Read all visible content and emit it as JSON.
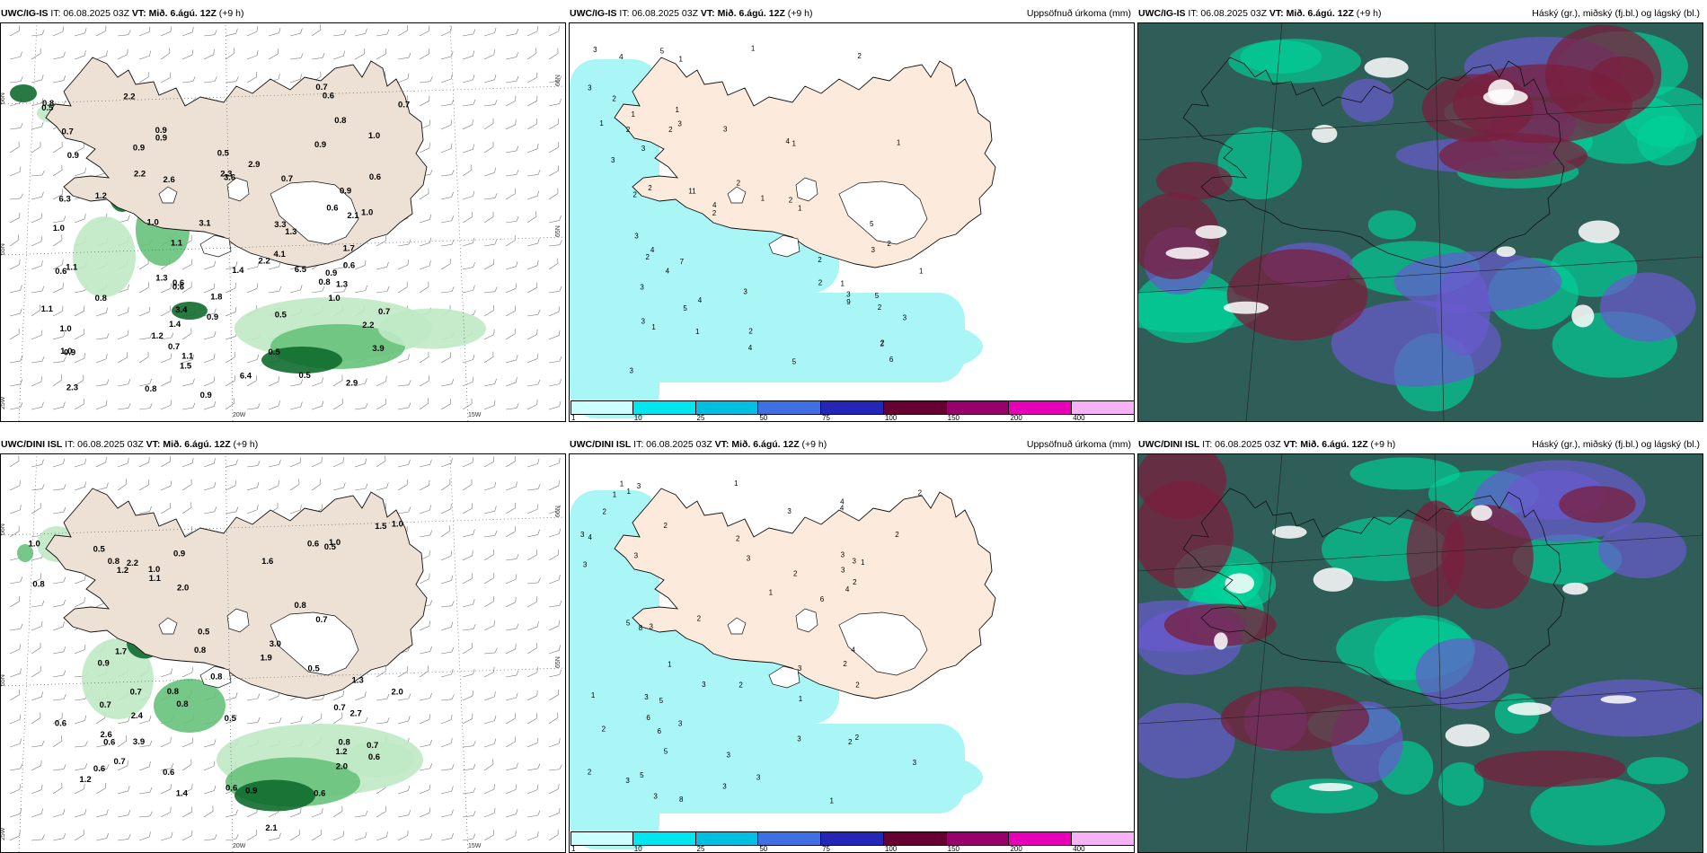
{
  "rows": [
    {
      "header": {
        "source": "UWC/IG-IS",
        "it": "IT: 06.08.2025 03Z",
        "vt_label": "VT: Mið. 6.ágú. 12Z",
        "lead": "(+9 h)"
      },
      "pressure_values": [
        "0.6",
        "0.9",
        "0.9",
        "1.2",
        "1.3",
        "2.9",
        "3.6",
        "3.1",
        "2.9",
        "0.8",
        "0.6",
        "1.0",
        "1.4",
        "0.5",
        "0.7",
        "0.8",
        "1.1",
        "1.0",
        "0.5",
        "1.4",
        "0.9",
        "0.7",
        "2.2",
        "1.3",
        "0.9",
        "0.9",
        "0.5",
        "1.1",
        "1.0",
        "0.8",
        "0.5",
        "1.1",
        "1.2",
        "0.9",
        "1.0",
        "0.6",
        "0.5",
        "0.8",
        "1.8",
        "1.3",
        "1.1",
        "0.9",
        "0.9",
        "0.8",
        "1.0",
        "2.2",
        "3.3",
        "6.5",
        "6.4",
        "6.3",
        "4.1",
        "2.2",
        "3.4",
        "2.2",
        "2.3",
        "3.9",
        "2.1",
        "2.6",
        "0.7",
        "0.7",
        "0.6",
        "0.7",
        "0.9",
        "2.3",
        "0.7",
        "1.0",
        "0.6",
        "1.0",
        "0.6",
        "1.5",
        "0.6",
        "0.9",
        "1.7"
      ],
      "precip_values": [
        "2",
        "4",
        "4",
        "3",
        "2",
        "1",
        "1",
        "2",
        "3",
        "5",
        "4",
        "3",
        "1",
        "2",
        "3",
        "1",
        "2",
        "1",
        "2",
        "2",
        "2",
        "1",
        "2",
        "1",
        "1",
        "1",
        "2",
        "2",
        "1",
        "1",
        "2",
        "2",
        "3",
        "1",
        "2",
        "3",
        "4",
        "3",
        "3",
        "3",
        "3",
        "2",
        "4",
        "5",
        "6",
        "5",
        "3",
        "4",
        "9",
        "2",
        "7",
        "11",
        "3",
        "1",
        "3",
        "4",
        "5",
        "2",
        "3",
        "5"
      ],
      "precip_title": "Uppsöfnuð úrkoma (mm)",
      "cloud_title": "Háský (gr.), miðský (fj.bl.) og lágský (bl.)",
      "axis_labels": [
        "66N",
        "65N",
        "25W",
        "20W",
        "15W",
        "66N",
        "65N"
      ]
    },
    {
      "header": {
        "source": "UWC/DINI ISL",
        "it": "IT: 06.08.2025 03Z",
        "vt_label": "VT: Mið. 6.ágú. 12Z",
        "lead": "(+9 h)"
      },
      "pressure_values": [
        "0.6",
        "1.0",
        "0.8",
        "0.7",
        "1.1",
        "1.3",
        "2.1",
        "0.6",
        "0.8",
        "0.8",
        "2.0",
        "0.6",
        "1.2",
        "0.7",
        "0.9",
        "0.7",
        "0.8",
        "1.0",
        "1.0",
        "0.6",
        "0.7",
        "0.6",
        "1.2",
        "0.8",
        "0.5",
        "0.9",
        "0.6",
        "0.5",
        "1.0",
        "0.7",
        "2.0",
        "1.5",
        "0.7",
        "0.5",
        "2.4",
        "2.2",
        "2.7",
        "2.0",
        "3.0",
        "2.6",
        "1.6",
        "1.7",
        "0.5",
        "3.9",
        "0.8",
        "0.6",
        "0.8",
        "0.9",
        "0.8",
        "1.2",
        "1.9",
        "0.5",
        "0.6",
        "1.4"
      ],
      "precip_values": [
        "1",
        "2",
        "1",
        "2",
        "1",
        "3",
        "1",
        "2",
        "3",
        "3",
        "2",
        "4",
        "1",
        "3",
        "2",
        "1",
        "2",
        "2",
        "6",
        "2",
        "2",
        "3",
        "3",
        "3",
        "3",
        "2",
        "4",
        "3",
        "5",
        "3",
        "4",
        "3",
        "3",
        "3",
        "2",
        "3",
        "4",
        "5",
        "6",
        "8",
        "2",
        "3",
        "2",
        "3",
        "3",
        "3",
        "5",
        "8",
        "6",
        "3",
        "1",
        "1",
        "3",
        "4",
        "3",
        "5",
        "2",
        "1",
        "1",
        "2"
      ],
      "precip_title": "Uppsöfnuð úrkoma (mm)",
      "cloud_title": "Háský (gr.), miðský (fj.bl.) og lágský (bl.)",
      "axis_labels": [
        "66N",
        "65N",
        "25W",
        "20W",
        "15W",
        "66N",
        "65N"
      ]
    }
  ],
  "colorbar": {
    "ticks": [
      "1",
      "10",
      "25",
      "50",
      "75",
      "100",
      "150",
      "200",
      "400"
    ],
    "colors": [
      "#ccffff",
      "#00e5ee",
      "#00bfe0",
      "#3f6fe0",
      "#2525b8",
      "#660033",
      "#99006b",
      "#e600b8",
      "#f5b3f5"
    ]
  },
  "palette": {
    "land": "#ede0d4",
    "land_precip": "#fcebdd",
    "precip_light": "#aaf5f5",
    "green_light": "#bfe9c4",
    "green_mid": "#66c27a",
    "green_dark": "#0e6b2d",
    "cloud_bg": "#2f5e58",
    "cloud_teal": "#00d29a",
    "cloud_maroon": "#7a1f3c",
    "cloud_blue": "#6a5ad0"
  }
}
